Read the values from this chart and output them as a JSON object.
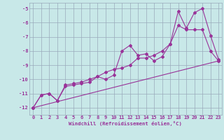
{
  "xlabel": "Windchill (Refroidissement éolien,°C)",
  "line_color": "#993399",
  "bg_color": "#c8e8e8",
  "grid_color": "#99aabb",
  "xlim_min": -0.5,
  "xlim_max": 23.4,
  "ylim_min": -12.5,
  "ylim_max": -4.6,
  "yticks": [
    -12,
    -11,
    -10,
    -9,
    -8,
    -7,
    -6,
    -5
  ],
  "xticks": [
    0,
    1,
    2,
    3,
    4,
    5,
    6,
    7,
    8,
    9,
    10,
    11,
    12,
    13,
    14,
    15,
    16,
    17,
    18,
    19,
    20,
    21,
    22,
    23
  ],
  "line1_x": [
    0,
    1,
    2,
    3,
    4,
    5,
    6,
    7,
    8,
    9,
    10,
    11,
    12,
    13,
    14,
    15,
    16,
    17,
    18,
    19,
    20,
    21,
    22,
    23
  ],
  "line1_y": [
    -12.0,
    -11.1,
    -11.0,
    -11.5,
    -10.4,
    -10.3,
    -10.2,
    -10.0,
    -9.8,
    -10.0,
    -9.7,
    -8.0,
    -7.6,
    -8.3,
    -8.2,
    -8.7,
    -8.4,
    -7.5,
    -5.2,
    -6.4,
    -5.3,
    -5.0,
    -6.9,
    -8.6
  ],
  "line2_x": [
    0,
    1,
    2,
    3,
    4,
    5,
    6,
    7,
    8,
    9,
    10,
    11,
    12,
    13,
    14,
    15,
    16,
    17,
    18,
    19,
    20,
    21,
    22,
    23
  ],
  "line2_y": [
    -12.0,
    -11.1,
    -11.0,
    -11.5,
    -10.5,
    -10.4,
    -10.3,
    -10.2,
    -9.8,
    -9.5,
    -9.3,
    -9.2,
    -9.0,
    -8.5,
    -8.5,
    -8.3,
    -8.0,
    -7.5,
    -6.2,
    -6.5,
    -6.5,
    -6.5,
    -8.0,
    -8.7
  ],
  "line3_x": [
    0,
    23
  ],
  "line3_y": [
    -12.0,
    -8.7
  ],
  "marker_size": 2.0,
  "line_width": 0.8,
  "tick_fontsize": 5.0,
  "xlabel_fontsize": 5.2
}
